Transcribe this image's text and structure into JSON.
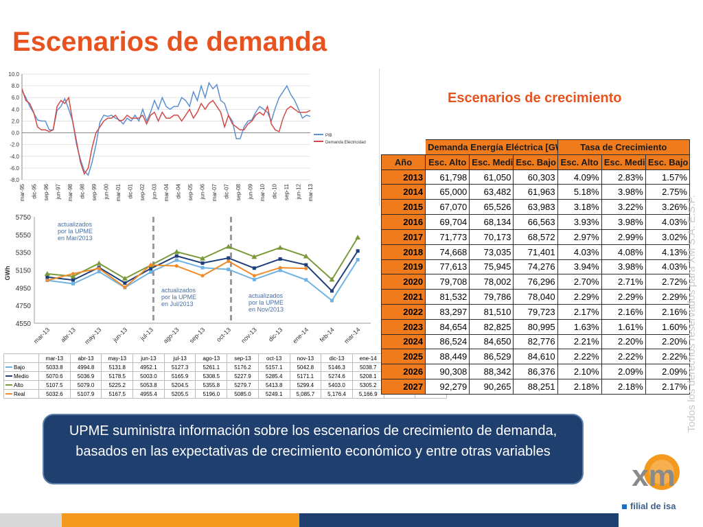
{
  "title": "Escenarios de demanda",
  "subtitle": "Escenarios de crecimiento",
  "copyright": "Todos los derechos reservados para XM S.A. E.S.P.",
  "note": "UPME suministra información sobre los escenarios de crecimiento de demanda, basados en las expectativas de crecimiento económico y entre otras variables",
  "logo": {
    "text": "xm",
    "tagline": "filial de isa"
  },
  "colors": {
    "accent": "#e8521f",
    "navy": "#1f3f6e",
    "orange": "#f07b1c",
    "gold": "#f39a1e"
  },
  "chart_data": [
    {
      "type": "line",
      "title": "",
      "ylabel": "",
      "xlabel": "",
      "ylim": [
        -8.0,
        10.0
      ],
      "yticks": [
        "10.0",
        "8.0",
        "6.0",
        "4.0",
        "2.0",
        "0.0",
        "-2.0",
        "-4.0",
        "-6.0",
        "-8.0"
      ],
      "xticklabels": [
        "mar-95",
        "dic-95",
        "sep-96",
        "jun-97",
        "mar-98",
        "dic-98",
        "sep-99",
        "jun-00",
        "mar-01",
        "dic-01",
        "sep-02",
        "jun-03",
        "mar-04",
        "dic-04",
        "sep-05",
        "jun-06",
        "mar-07",
        "dic-07",
        "sep-08",
        "jun-09",
        "mar-10",
        "dic-10",
        "sep-11",
        "jun-12",
        "mar-13"
      ],
      "legend_position": "right",
      "series": [
        {
          "name": "PIB",
          "color": "#5b8fd0",
          "values": [
            7.2,
            6.0,
            4.5,
            3.4,
            2.2,
            2.0,
            2.0,
            0.5,
            0.5,
            3.8,
            4.5,
            5.8,
            4.0,
            2.0,
            -2.0,
            -4.5,
            -6.5,
            -7.2,
            -5.0,
            -2.0,
            1.8,
            3.0,
            2.8,
            3.0,
            2.5,
            2.2,
            1.5,
            2.5,
            2.0,
            3.0,
            2.0,
            4.0,
            2.0,
            3.5,
            5.5,
            4.0,
            6.0,
            4.5,
            4.0,
            4.5,
            4.5,
            6.0,
            5.5,
            4.5,
            7.0,
            5.5,
            8.0,
            6.0,
            8.5,
            7.5,
            8.2,
            5.5,
            5.0,
            3.0,
            2.0,
            -1.0,
            -1.0,
            1.0,
            2.0,
            2.2,
            3.5,
            4.5,
            4.0,
            3.5,
            2.0,
            4.2,
            6.0,
            7.0,
            8.0,
            6.5,
            5.5,
            4.0,
            2.5,
            3.0,
            2.8
          ]
        },
        {
          "name": "Demanda Electricidad",
          "color": "#d04a45",
          "values": [
            7.5,
            5.5,
            5.0,
            3.5,
            1.0,
            0.5,
            0.5,
            0.2,
            0.5,
            4.5,
            5.5,
            5.0,
            6.0,
            2.0,
            -1.5,
            -5.0,
            -7.0,
            -6.0,
            -2.5,
            0.0,
            1.0,
            2.0,
            2.5,
            2.5,
            3.0,
            2.0,
            2.2,
            3.0,
            2.5,
            2.5,
            2.5,
            3.0,
            1.5,
            3.0,
            3.5,
            2.0,
            3.5,
            2.5,
            2.5,
            3.0,
            3.0,
            2.0,
            3.0,
            4.0,
            2.5,
            3.5,
            5.0,
            4.0,
            5.0,
            5.5,
            4.5,
            3.5,
            1.0,
            3.0,
            1.5,
            1.0,
            0.5,
            0.5,
            1.5,
            2.0,
            3.0,
            3.5,
            3.0,
            4.5,
            1.5,
            0.5,
            0.2,
            2.5,
            4.0,
            4.5,
            4.0,
            3.5,
            3.5,
            3.5,
            3.8
          ]
        }
      ]
    },
    {
      "type": "line",
      "title": "",
      "ylabel": "GWh",
      "ylim": [
        4550,
        5750
      ],
      "yticks": [
        4550,
        4750,
        4950,
        5150,
        5350,
        5550,
        5750
      ],
      "categories": [
        "mar-13",
        "abr-13",
        "may-13",
        "jun-13",
        "jul-13",
        "ago-13",
        "sep-13",
        "oct-13",
        "nov-13",
        "dic-13",
        "ene-14",
        "feb-14",
        "mar-14"
      ],
      "annotations": [
        "actualizados por la UPME en Mar/2013",
        "actualizados por la UPME en Jul/2013",
        "actualizados por la UPME en Nov/2013"
      ],
      "legend_position": "table",
      "series": [
        {
          "name": "Bajo",
          "color": "#6fb3e4",
          "values": [
            5033.8,
            4994.8,
            5131.8,
            4952.1,
            5127.3,
            5261.1,
            5176.2,
            5157.1,
            5042.8,
            5146.3,
            5038.7,
            4805.1,
            5266.0
          ]
        },
        {
          "name": "Medio",
          "color": "#1f3f7a",
          "values": [
            5070.6,
            5036.9,
            5178.5,
            5003.0,
            5165.9,
            5308.5,
            5227.9,
            5285.4,
            5171.1,
            5274.6,
            5208.1,
            4914.2,
            5365.2
          ]
        },
        {
          "name": "Alto",
          "color": "#7a9a3a",
          "values": [
            5107.5,
            5079.0,
            5225.2,
            5053.8,
            5204.5,
            5355.8,
            5279.7,
            5413.8,
            5299.4,
            5403.0,
            5305.2,
            5042.5,
            5517.5
          ]
        },
        {
          "name": "Real",
          "color": "#f08a2a",
          "values": [
            5032.6,
            5107.9,
            5167.5,
            4955.4,
            5205.5,
            5196.0,
            5085.0,
            5249.1,
            "5,085.7",
            "5,176.4",
            "5,166.9",
            null,
            null
          ]
        }
      ]
    },
    {
      "type": "table",
      "header_group": [
        "Demanda Energía Eléctrica [GWh / año]",
        "Tasa de Crecimiento"
      ],
      "columns": [
        "Año",
        "Esc. Alto",
        "Esc. Medio",
        "Esc. Bajo",
        "Esc. Alto",
        "Esc. Medio",
        "Esc. Bajo"
      ],
      "rows": [
        [
          "2013",
          "61,798",
          "61,050",
          "60,303",
          "4.09%",
          "2.83%",
          "1.57%"
        ],
        [
          "2014",
          "65,000",
          "63,482",
          "61,963",
          "5.18%",
          "3.98%",
          "2.75%"
        ],
        [
          "2015",
          "67,070",
          "65,526",
          "63,983",
          "3.18%",
          "3.22%",
          "3.26%"
        ],
        [
          "2016",
          "69,704",
          "68,134",
          "66,563",
          "3.93%",
          "3.98%",
          "4.03%"
        ],
        [
          "2017",
          "71,773",
          "70,173",
          "68,572",
          "2.97%",
          "2.99%",
          "3.02%"
        ],
        [
          "2018",
          "74,668",
          "73,035",
          "71,401",
          "4.03%",
          "4.08%",
          "4.13%"
        ],
        [
          "2019",
          "77,613",
          "75,945",
          "74,276",
          "3.94%",
          "3.98%",
          "4.03%"
        ],
        [
          "2020",
          "79,708",
          "78,002",
          "76,296",
          "2.70%",
          "2.71%",
          "2.72%"
        ],
        [
          "2021",
          "81,532",
          "79,786",
          "78,040",
          "2.29%",
          "2.29%",
          "2.29%"
        ],
        [
          "2022",
          "83,297",
          "81,510",
          "79,723",
          "2.17%",
          "2.16%",
          "2.16%"
        ],
        [
          "2023",
          "84,654",
          "82,825",
          "80,995",
          "1.63%",
          "1.61%",
          "1.60%"
        ],
        [
          "2024",
          "86,524",
          "84,650",
          "82,776",
          "2.21%",
          "2.20%",
          "2.20%"
        ],
        [
          "2025",
          "88,449",
          "86,529",
          "84,610",
          "2.22%",
          "2.22%",
          "2.22%"
        ],
        [
          "2026",
          "90,308",
          "88,342",
          "86,376",
          "2.10%",
          "2.09%",
          "2.09%"
        ],
        [
          "2027",
          "92,279",
          "90,265",
          "88,251",
          "2.18%",
          "2.18%",
          "2.17%"
        ]
      ]
    }
  ]
}
